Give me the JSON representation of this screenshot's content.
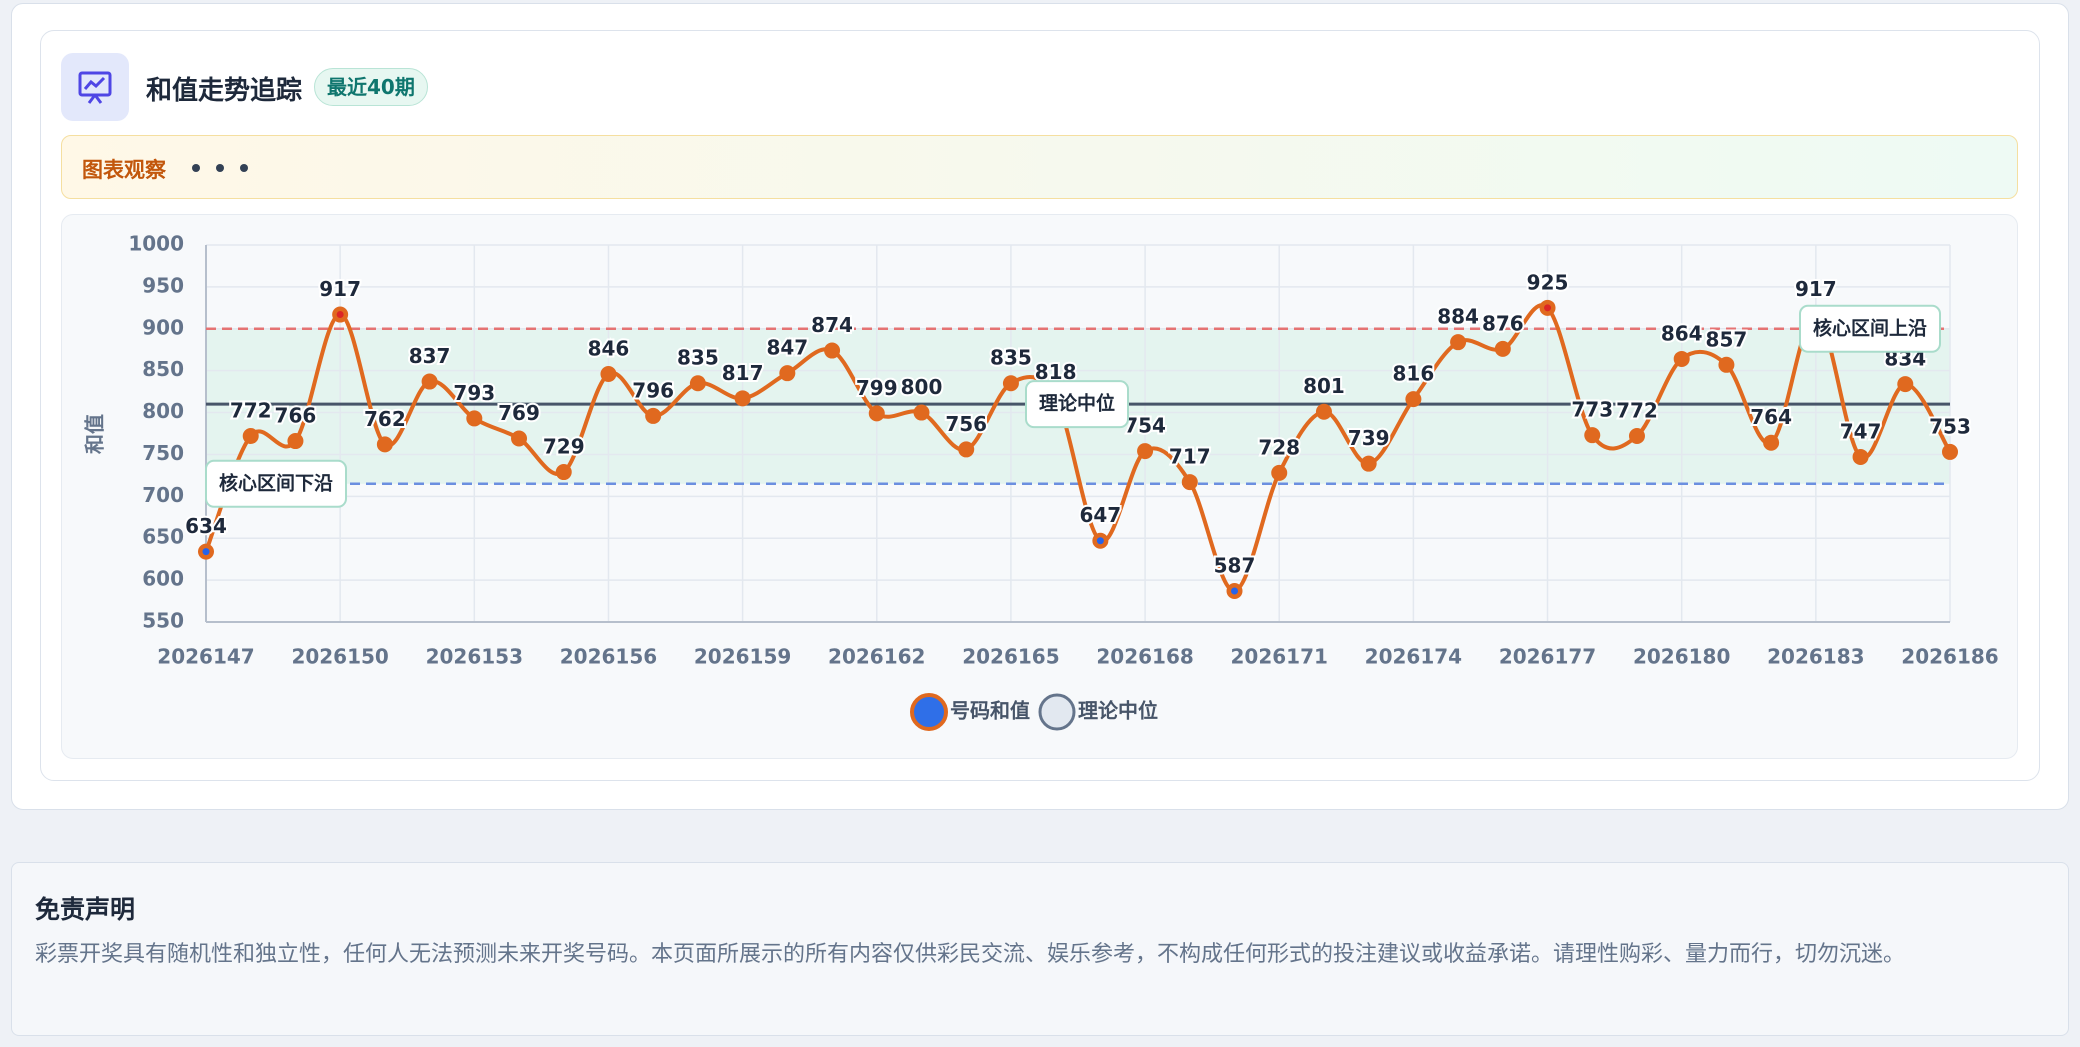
{
  "chart_data": {
    "type": "line",
    "title": "和值走势追踪",
    "badge": "最近40期",
    "y_label": "和值",
    "x": [
      2026147,
      2026148,
      2026149,
      2026150,
      2026151,
      2026152,
      2026153,
      2026154,
      2026155,
      2026156,
      2026157,
      2026158,
      2026159,
      2026160,
      2026161,
      2026162,
      2026163,
      2026164,
      2026165,
      2026166,
      2026167,
      2026168,
      2026169,
      2026170,
      2026171,
      2026172,
      2026173,
      2026174,
      2026175,
      2026176,
      2026177,
      2026178,
      2026179,
      2026180,
      2026181,
      2026182,
      2026183,
      2026184,
      2026185,
      2026186
    ],
    "xlim": [
      2026147,
      2026186
    ],
    "xticks": [
      2026147,
      2026150,
      2026153,
      2026156,
      2026159,
      2026162,
      2026165,
      2026168,
      2026171,
      2026174,
      2026177,
      2026180,
      2026183,
      2026186
    ],
    "ylim": [
      550,
      1000
    ],
    "yticks": [
      550,
      600,
      650,
      700,
      750,
      800,
      850,
      900,
      950,
      1000
    ],
    "grid": true,
    "series": [
      {
        "name": "号码和值",
        "color": "#e0691f",
        "values": [
          634,
          772,
          766,
          917,
          762,
          837,
          793,
          769,
          729,
          846,
          796,
          835,
          817,
          847,
          874,
          799,
          800,
          756,
          835,
          818,
          647,
          754,
          717,
          587,
          728,
          801,
          739,
          816,
          884,
          876,
          925,
          773,
          772,
          864,
          857,
          764,
          917,
          747,
          834,
          753
        ]
      }
    ],
    "reference_lines": [
      {
        "label": "核心区间上沿",
        "value": 900,
        "color": "#e57373",
        "dashed": true
      },
      {
        "label": "理论中位",
        "value": 810,
        "color": "#475569",
        "dashed": false
      },
      {
        "label": "核心区间下沿",
        "value": 715,
        "color": "#6b8fe0",
        "dashed": true
      }
    ],
    "band_color": "#dff3ec"
  },
  "observation": {
    "title": "图表观察"
  },
  "disclaimer": {
    "title": "免责声明",
    "text": "彩票开奖具有随机性和独立性，任何人无法预测未来开奖号码。本页面所展示的所有内容仅供彩民交流、娱乐参考，不构成任何形式的投注建议或收益承诺。请理性购彩、量力而行，切勿沉迷。"
  }
}
